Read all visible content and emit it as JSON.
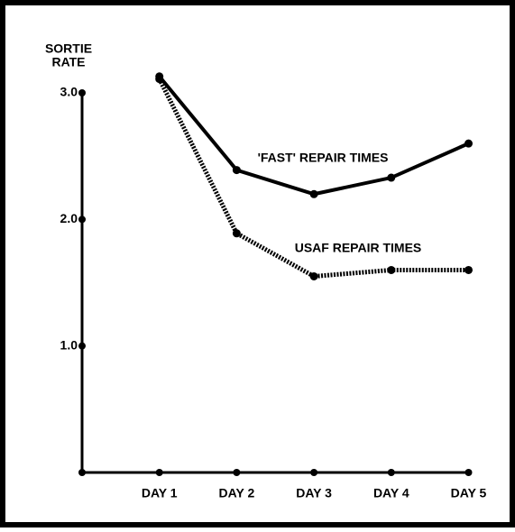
{
  "chart_data": {
    "type": "line",
    "ylabel": [
      "SORTIE",
      "RATE"
    ],
    "categories": [
      "DAY 1",
      "DAY 2",
      "DAY 3",
      "DAY 4",
      "DAY 5"
    ],
    "series": [
      {
        "name": "'FAST' REPAIR TIMES",
        "color": "#000000",
        "line_style": "solid",
        "values": [
          3.13,
          2.39,
          2.2,
          2.33,
          2.6
        ]
      },
      {
        "name": "USAF REPAIR TIMES",
        "color": "#000000",
        "line_style": "dotted",
        "values": [
          3.11,
          1.89,
          1.55,
          1.6,
          1.6
        ]
      }
    ],
    "ylim": [
      0,
      3.0
    ],
    "yticks": [
      {
        "value": 1,
        "label": "1.0"
      },
      {
        "value": 2,
        "label": "2.0"
      },
      {
        "value": 3,
        "label": "3.0"
      }
    ]
  }
}
